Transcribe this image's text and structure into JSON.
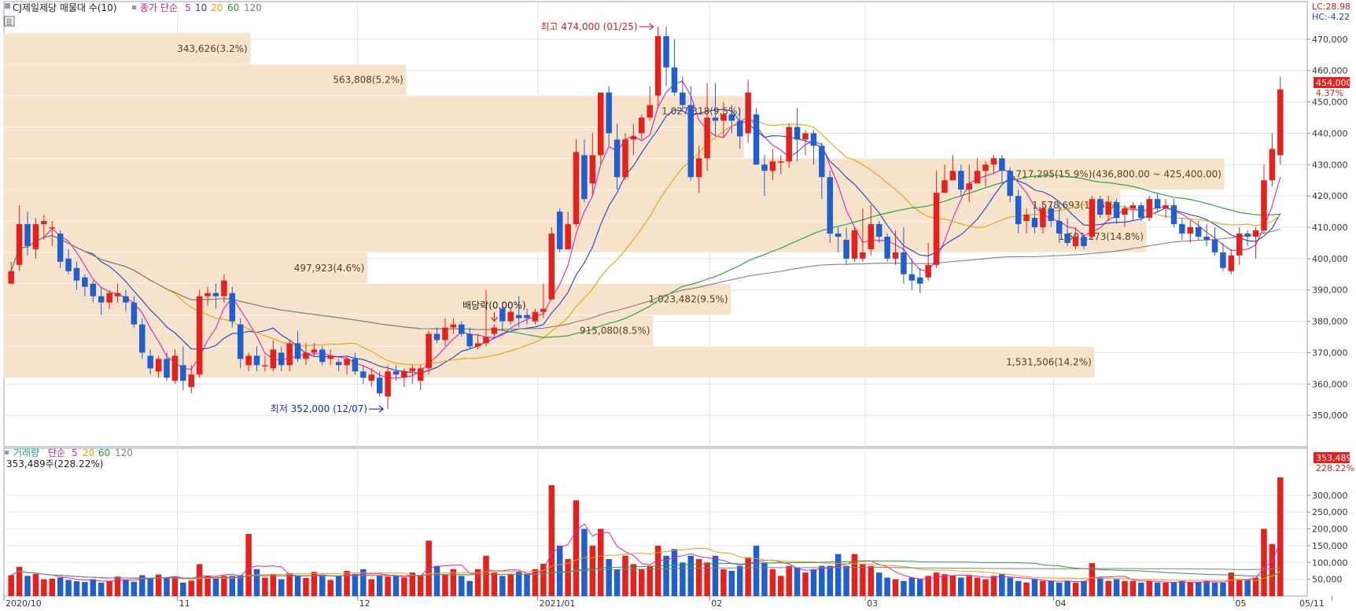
{
  "legend": {
    "title": "CJ제일제당 매물대 수(10)",
    "price_ma_label": "종가 단순",
    "volume_label": "거래량",
    "volume_ma_label": "단순",
    "ma_periods": [
      "5",
      "10",
      "20",
      "60",
      "120"
    ],
    "ma_colors": [
      "#e020c0",
      "#2040d0",
      "#f0a000",
      "#20a040",
      "#808080"
    ],
    "volume_current": "353,489주(228.22%)"
  },
  "indicators": {
    "lc": "LC:28.98",
    "hc": "HC:-4.22"
  },
  "price_badge": {
    "value": "454,000",
    "change": "4.37%"
  },
  "volume_badge": {
    "value": "353,489",
    "change": "228.22%"
  },
  "annotations": {
    "high": "최고 474,000 (01/25)",
    "low": "최저 352,000 (12/07)",
    "dividend": "배당락(0.00%)"
  },
  "chart_data": {
    "type": "candlestick",
    "colors": {
      "up": "#e8201c",
      "down": "#1f5fd0",
      "volume_profile": "#f6e3cc"
    },
    "price_axis": {
      "min": 340000,
      "max": 478000,
      "ticks": [
        350000,
        360000,
        370000,
        380000,
        390000,
        400000,
        410000,
        420000,
        430000,
        440000,
        450000,
        460000,
        470000
      ],
      "tick_labels": [
        "350,000",
        "360,000",
        "370,000",
        "380,000",
        "390,000",
        "400,000",
        "410,000",
        "420,000",
        "430,000",
        "440,000",
        "450,000",
        "460,000",
        "470,000"
      ]
    },
    "volume_axis": {
      "max": 370000,
      "ticks": [
        50000,
        100000,
        150000,
        200000,
        250000,
        300000
      ],
      "tick_labels": [
        "50,000",
        "100,000",
        "150,000",
        "200,000",
        "250,000",
        "300,000"
      ]
    },
    "x_labels": [
      {
        "label": "2020/10",
        "index": 0
      },
      {
        "label": "11",
        "index": 21
      },
      {
        "label": "12",
        "index": 43
      },
      {
        "label": "2021/01",
        "index": 65
      },
      {
        "label": "02",
        "index": 86
      },
      {
        "label": "03",
        "index": 105
      },
      {
        "label": "04",
        "index": 128
      },
      {
        "label": "05",
        "index": 150
      },
      {
        "label": "05/11",
        "index": 162
      }
    ],
    "volume_profile": [
      {
        "low": 462000,
        "high": 472000,
        "label": "343,626(3.2%)",
        "weight": 0.19
      },
      {
        "low": 452000,
        "high": 462000,
        "label": "563,808(5.2%)",
        "weight": 0.31
      },
      {
        "low": 442000,
        "high": 452000,
        "label": "1,027,318(9.5%)",
        "weight": 0.57
      },
      {
        "low": 432000,
        "high": 442000,
        "label": "",
        "weight": 0.57
      },
      {
        "low": 422000,
        "high": 432000,
        "label": "1,717,295(15.9%)(436,800.00 ~ 425,400.00)",
        "weight": 0.94
      },
      {
        "low": 412000,
        "high": 422000,
        "label": "1,578,693(14.6%)",
        "weight": 0.86
      },
      {
        "low": 402000,
        "high": 412000,
        "label": "1,601,273(14.8%)",
        "weight": 0.88
      },
      {
        "low": 392000,
        "high": 402000,
        "label": "497,923(4.6%)",
        "weight": 0.28
      },
      {
        "low": 382000,
        "high": 392000,
        "label": "1,023,482(9.5%)",
        "weight": 0.56
      },
      {
        "low": 372000,
        "high": 382000,
        "label": "915,080(8.5%)",
        "weight": 0.5
      },
      {
        "low": 362000,
        "high": 372000,
        "label": "1,531,506(14.2%)",
        "weight": 0.84
      }
    ],
    "ohlcv": [
      [
        392000,
        399000,
        392000,
        396000,
        62000
      ],
      [
        398000,
        417000,
        396000,
        411000,
        87000
      ],
      [
        411000,
        415000,
        401000,
        404000,
        60000
      ],
      [
        403000,
        413000,
        400000,
        411000,
        66000
      ],
      [
        411000,
        414000,
        406000,
        412000,
        50000
      ],
      [
        410000,
        412000,
        404000,
        410000,
        52000
      ],
      [
        408000,
        409000,
        397000,
        399000,
        55000
      ],
      [
        400000,
        403000,
        395000,
        396000,
        48000
      ],
      [
        397000,
        399000,
        390000,
        393000,
        44000
      ],
      [
        394000,
        395000,
        388000,
        391000,
        42000
      ],
      [
        392000,
        393000,
        386000,
        388000,
        50000
      ],
      [
        388000,
        391000,
        382000,
        386000,
        40000
      ],
      [
        386000,
        390000,
        384000,
        389000,
        45000
      ],
      [
        388000,
        392000,
        386000,
        389000,
        58000
      ],
      [
        388000,
        390000,
        383000,
        386000,
        48000
      ],
      [
        386000,
        388000,
        378000,
        379000,
        42000
      ],
      [
        379000,
        381000,
        368000,
        370000,
        62000
      ],
      [
        369000,
        371000,
        363000,
        365000,
        52000
      ],
      [
        364000,
        369000,
        362000,
        368000,
        64000
      ],
      [
        368000,
        370000,
        361000,
        362000,
        56000
      ],
      [
        361000,
        371000,
        360000,
        369000,
        58000
      ],
      [
        366000,
        372000,
        358000,
        361000,
        40000
      ],
      [
        359000,
        366000,
        357000,
        363000,
        46000
      ],
      [
        363000,
        390000,
        362000,
        388000,
        95000
      ],
      [
        388000,
        391000,
        385000,
        389000,
        60000
      ],
      [
        389000,
        392000,
        384000,
        388000,
        52000
      ],
      [
        388000,
        395000,
        386000,
        393000,
        60000
      ],
      [
        389000,
        391000,
        378000,
        380000,
        60000
      ],
      [
        379000,
        381000,
        365000,
        368000,
        62000
      ],
      [
        366000,
        370000,
        364000,
        369000,
        185000
      ],
      [
        369000,
        372000,
        364000,
        366000,
        80000
      ],
      [
        366000,
        369000,
        364000,
        366000,
        55000
      ],
      [
        365000,
        374000,
        364000,
        371000,
        66000
      ],
      [
        370000,
        372000,
        364000,
        366000,
        50000
      ],
      [
        366000,
        374000,
        364000,
        373000,
        68000
      ],
      [
        373000,
        377000,
        367000,
        368000,
        62000
      ],
      [
        368000,
        373000,
        366000,
        370000,
        54000
      ],
      [
        370000,
        373000,
        369000,
        371000,
        72000
      ],
      [
        371000,
        372000,
        366000,
        367000,
        62000
      ],
      [
        368000,
        371000,
        366000,
        369000,
        48000
      ],
      [
        367000,
        368000,
        364000,
        366000,
        60000
      ],
      [
        366000,
        369000,
        363000,
        368000,
        75000
      ],
      [
        368000,
        370000,
        363000,
        364000,
        66000
      ],
      [
        364000,
        366000,
        360000,
        362000,
        80000
      ],
      [
        361000,
        365000,
        359000,
        363000,
        50000
      ],
      [
        362000,
        364000,
        356000,
        357000,
        60000
      ],
      [
        356000,
        366000,
        352000,
        364000,
        58000
      ],
      [
        364000,
        366000,
        361000,
        363000,
        60000
      ],
      [
        362000,
        365000,
        359000,
        364000,
        55000
      ],
      [
        364000,
        366000,
        360000,
        365000,
        70000
      ],
      [
        361000,
        366000,
        358000,
        365000,
        60000
      ],
      [
        365000,
        377000,
        363000,
        376000,
        165000
      ],
      [
        376000,
        378000,
        373000,
        374000,
        90000
      ],
      [
        374000,
        381000,
        372000,
        378000,
        65000
      ],
      [
        378000,
        381000,
        376000,
        379000,
        80000
      ],
      [
        379000,
        380000,
        375000,
        376000,
        60000
      ],
      [
        376000,
        378000,
        371000,
        372000,
        45000
      ],
      [
        372000,
        376000,
        371000,
        373000,
        80000
      ],
      [
        373000,
        390000,
        372000,
        375000,
        120000
      ],
      [
        376000,
        379000,
        375000,
        378000,
        70000
      ],
      [
        384000,
        386000,
        377000,
        380000,
        60000
      ],
      [
        380000,
        384000,
        379000,
        383000,
        66000
      ],
      [
        382000,
        388000,
        378000,
        381000,
        72000
      ],
      [
        382000,
        384000,
        379000,
        381000,
        65000
      ],
      [
        380000,
        384000,
        379000,
        383000,
        80000
      ],
      [
        383000,
        392000,
        381000,
        384000,
        96000
      ],
      [
        387000,
        410000,
        387000,
        408000,
        330000
      ],
      [
        415000,
        416000,
        402000,
        403000,
        150000
      ],
      [
        403000,
        415000,
        403000,
        411000,
        110000
      ],
      [
        411000,
        438000,
        410000,
        434000,
        285000
      ],
      [
        433000,
        438000,
        418000,
        419000,
        200000
      ],
      [
        424000,
        440000,
        420000,
        433000,
        150000
      ],
      [
        433000,
        452000,
        430000,
        453000,
        200000
      ],
      [
        453000,
        455000,
        436000,
        440000,
        110000
      ],
      [
        438000,
        443000,
        422000,
        426000,
        80000
      ],
      [
        426000,
        440000,
        425000,
        438000,
        120000
      ],
      [
        438000,
        443000,
        433000,
        439000,
        95000
      ],
      [
        440000,
        446000,
        438000,
        445000,
        80000
      ],
      [
        445000,
        455000,
        444000,
        449000,
        90000
      ],
      [
        452000,
        474000,
        448000,
        471000,
        150000
      ],
      [
        471000,
        474000,
        455000,
        461000,
        120000
      ],
      [
        461000,
        470000,
        452000,
        453000,
        140000
      ],
      [
        453000,
        458000,
        447000,
        449000,
        100000
      ],
      [
        449000,
        455000,
        425000,
        426000,
        120000
      ],
      [
        426000,
        436000,
        421000,
        432000,
        110000
      ],
      [
        432000,
        456000,
        428000,
        445000,
        100000
      ],
      [
        445000,
        456000,
        439000,
        444000,
        120000
      ],
      [
        444000,
        450000,
        439000,
        446000,
        80000
      ],
      [
        446000,
        449000,
        440000,
        444000,
        75000
      ],
      [
        444000,
        448000,
        435000,
        439000,
        90000
      ],
      [
        440000,
        457000,
        437000,
        453000,
        115000
      ],
      [
        446000,
        448000,
        430000,
        430000,
        150000
      ],
      [
        430000,
        433000,
        420000,
        428000,
        100000
      ],
      [
        428000,
        435000,
        425000,
        431000,
        80000
      ],
      [
        431000,
        433000,
        427000,
        431000,
        60000
      ],
      [
        431000,
        443000,
        429000,
        442000,
        90000
      ],
      [
        442000,
        448000,
        431000,
        438000,
        85000
      ],
      [
        438000,
        441000,
        433000,
        440000,
        70000
      ],
      [
        440000,
        441000,
        430000,
        436000,
        80000
      ],
      [
        436000,
        437000,
        419000,
        426000,
        90000
      ],
      [
        426000,
        428000,
        405000,
        408000,
        90000
      ],
      [
        408000,
        410000,
        402000,
        407000,
        125000
      ],
      [
        406000,
        410000,
        398000,
        400000,
        90000
      ],
      [
        400000,
        410000,
        399000,
        409000,
        125000
      ],
      [
        400000,
        416000,
        399000,
        402000,
        95000
      ],
      [
        403000,
        417000,
        401000,
        411000,
        90000
      ],
      [
        411000,
        412000,
        405000,
        407000,
        70000
      ],
      [
        407000,
        408000,
        399000,
        400000,
        55000
      ],
      [
        400000,
        409000,
        398000,
        402000,
        50000
      ],
      [
        402000,
        410000,
        392000,
        395000,
        45000
      ],
      [
        395000,
        400000,
        390000,
        393000,
        55000
      ],
      [
        394000,
        397000,
        389000,
        392000,
        50000
      ],
      [
        394000,
        405000,
        393000,
        398000,
        60000
      ],
      [
        398000,
        428000,
        397000,
        421000,
        70000
      ],
      [
        421000,
        430000,
        421000,
        425000,
        65000
      ],
      [
        425000,
        433000,
        425000,
        428000,
        60000
      ],
      [
        428000,
        430000,
        420000,
        422000,
        55000
      ],
      [
        422000,
        430000,
        418000,
        424000,
        60000
      ],
      [
        424000,
        432000,
        424000,
        428000,
        55000
      ],
      [
        428000,
        431000,
        423000,
        430000,
        50000
      ],
      [
        430000,
        433000,
        427000,
        432000,
        60000
      ],
      [
        432000,
        433000,
        424000,
        428000,
        65000
      ],
      [
        428000,
        429000,
        418000,
        420000,
        55000
      ],
      [
        420000,
        422000,
        408000,
        411000,
        45000
      ],
      [
        412000,
        416000,
        408000,
        414000,
        40000
      ],
      [
        413000,
        417000,
        408000,
        410000,
        50000
      ],
      [
        410000,
        418000,
        408000,
        416000,
        45000
      ],
      [
        416000,
        418000,
        410000,
        412000,
        45000
      ],
      [
        412000,
        418000,
        405000,
        408000,
        40000
      ],
      [
        408000,
        413000,
        404000,
        405000,
        45000
      ],
      [
        404000,
        410000,
        403000,
        407000,
        40000
      ],
      [
        407000,
        408000,
        403000,
        404000,
        45000
      ],
      [
        407000,
        420000,
        406000,
        419000,
        98000
      ],
      [
        419000,
        420000,
        413000,
        414000,
        55000
      ],
      [
        414000,
        420000,
        412000,
        418000,
        45000
      ],
      [
        418000,
        419000,
        411000,
        413000,
        50000
      ],
      [
        414000,
        417000,
        410000,
        416000,
        45000
      ],
      [
        416000,
        418000,
        412000,
        417000,
        45000
      ],
      [
        417000,
        418000,
        412000,
        413000,
        40000
      ],
      [
        413000,
        420000,
        412000,
        419000,
        45000
      ],
      [
        419000,
        421000,
        415000,
        416000,
        40000
      ],
      [
        416000,
        419000,
        413000,
        417000,
        40000
      ],
      [
        417000,
        419000,
        410000,
        411000,
        40000
      ],
      [
        411000,
        413000,
        406000,
        408000,
        45000
      ],
      [
        408000,
        412000,
        405000,
        410000,
        40000
      ],
      [
        410000,
        412000,
        406000,
        407000,
        42000
      ],
      [
        407000,
        411000,
        404000,
        406000,
        45000
      ],
      [
        406000,
        410000,
        401000,
        402000,
        40000
      ],
      [
        402000,
        405000,
        396000,
        397000,
        40000
      ],
      [
        396000,
        403000,
        395000,
        401000,
        70000
      ],
      [
        401000,
        410000,
        398000,
        408000,
        50000
      ],
      [
        408000,
        409000,
        404000,
        407000,
        50000
      ],
      [
        407000,
        410000,
        400000,
        409000,
        55000
      ],
      [
        409000,
        430000,
        408000,
        425000,
        200000
      ],
      [
        425000,
        440000,
        423000,
        435000,
        155000
      ],
      [
        433000,
        458000,
        430000,
        454000,
        353489
      ]
    ]
  }
}
